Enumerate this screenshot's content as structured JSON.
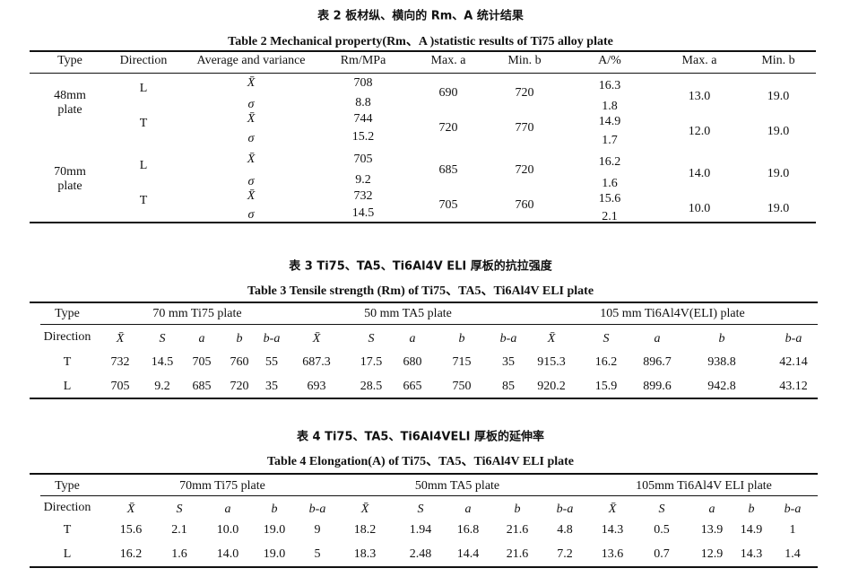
{
  "table2": {
    "title_cn": "表 2  板材纵、横向的 Rm、A 统计结果",
    "title_en": "Table 2   Mechanical property(Rm、A )statistic results of Ti75 alloy plate",
    "headers": [
      "Type",
      "Direction",
      "Average and variance",
      "Rm/MPa",
      "Max. a",
      "Min. b",
      "A/%",
      "Max. a",
      "Min. b"
    ],
    "groups": [
      {
        "type": "48mm plate",
        "rows": [
          {
            "direction": "L",
            "mean": "708",
            "sd": "8.8",
            "rm_max": "690",
            "rm_min": "720",
            "a_mean": "16.3",
            "a_sd": "1.8",
            "a_max": "13.0",
            "a_min": "19.0"
          },
          {
            "direction": "T",
            "mean": "744",
            "sd": "15.2",
            "rm_max": "720",
            "rm_min": "770",
            "a_mean": "14.9",
            "a_sd": "1.7",
            "a_max": "12.0",
            "a_min": "19.0"
          }
        ]
      },
      {
        "type": "70mm plate",
        "rows": [
          {
            "direction": "L",
            "mean": "705",
            "sd": "9.2",
            "rm_max": "685",
            "rm_min": "720",
            "a_mean": "16.2",
            "a_sd": "1.6",
            "a_max": "14.0",
            "a_min": "19.0"
          },
          {
            "direction": "T",
            "mean": "732",
            "sd": "14.5",
            "rm_max": "705",
            "rm_min": "760",
            "a_mean": "15.6",
            "a_sd": "2.1",
            "a_max": "10.0",
            "a_min": "19.0"
          }
        ]
      }
    ],
    "mean_symbol": "X̄",
    "sd_symbol": "σ"
  },
  "table3": {
    "title_cn": "表 3  Ti75、TA5、Ti6Al4V ELI 厚板的抗拉强度",
    "title_en": "Table 3   Tensile strength (Rm) of Ti75、TA5、Ti6Al4V ELI plate",
    "type_label": "Type",
    "direction_label": "Direction",
    "groups": [
      "70 mm Ti75 plate",
      "50 mm TA5 plate",
      "105 mm Ti6Al4V(ELI) plate"
    ],
    "subheaders": [
      "X̄",
      "S",
      "a",
      "b",
      "b-a",
      "X̄",
      "S",
      "a",
      "b",
      "b-a",
      "X̄",
      "S",
      "a",
      "b",
      "b-a"
    ],
    "rows": [
      {
        "direction": "T",
        "values": [
          "732",
          "14.5",
          "705",
          "760",
          "55",
          "687.3",
          "17.5",
          "680",
          "715",
          "35",
          "915.3",
          "16.2",
          "896.7",
          "938.8",
          "42.14"
        ]
      },
      {
        "direction": "L",
        "values": [
          "705",
          "9.2",
          "685",
          "720",
          "35",
          "693",
          "28.5",
          "665",
          "750",
          "85",
          "920.2",
          "15.9",
          "899.6",
          "942.8",
          "43.12"
        ]
      }
    ]
  },
  "table4": {
    "title_cn": "表 4  Ti75、TA5、Ti6Al4VELI 厚板的延伸率",
    "title_en": "Table 4   Elongation(A) of Ti75、TA5、Ti6Al4V ELI plate",
    "type_label": "Type",
    "direction_label": "Direction",
    "groups": [
      "70mm Ti75 plate",
      "50mm TA5 plate",
      "105mm Ti6Al4V ELI plate"
    ],
    "subheaders": [
      "X̄",
      "S",
      "a",
      "b",
      "b-a",
      "X̄",
      "S",
      "a",
      "b",
      "b-a",
      "X̄",
      "S",
      "a",
      "b",
      "b-a"
    ],
    "rows": [
      {
        "direction": "T",
        "values": [
          "15.6",
          "2.1",
          "10.0",
          "19.0",
          "9",
          "18.2",
          "1.94",
          "16.8",
          "21.6",
          "4.8",
          "14.3",
          "0.5",
          "13.9",
          "14.9",
          "1"
        ]
      },
      {
        "direction": "L",
        "values": [
          "16.2",
          "1.6",
          "14.0",
          "19.0",
          "5",
          "18.3",
          "2.48",
          "14.4",
          "21.6",
          "7.2",
          "13.6",
          "0.7",
          "12.9",
          "14.3",
          "1.4"
        ]
      }
    ]
  }
}
